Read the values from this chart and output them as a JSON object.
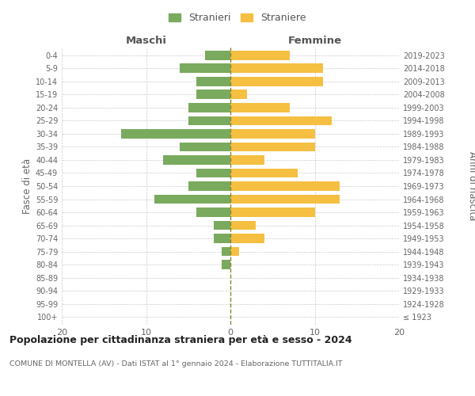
{
  "age_groups": [
    "100+",
    "95-99",
    "90-94",
    "85-89",
    "80-84",
    "75-79",
    "70-74",
    "65-69",
    "60-64",
    "55-59",
    "50-54",
    "45-49",
    "40-44",
    "35-39",
    "30-34",
    "25-29",
    "20-24",
    "15-19",
    "10-14",
    "5-9",
    "0-4"
  ],
  "birth_years": [
    "≤ 1923",
    "1924-1928",
    "1929-1933",
    "1934-1938",
    "1939-1943",
    "1944-1948",
    "1949-1953",
    "1954-1958",
    "1959-1963",
    "1964-1968",
    "1969-1973",
    "1974-1978",
    "1979-1983",
    "1984-1988",
    "1989-1993",
    "1994-1998",
    "1999-2003",
    "2004-2008",
    "2009-2013",
    "2014-2018",
    "2019-2023"
  ],
  "males": [
    0,
    0,
    0,
    0,
    1,
    1,
    2,
    2,
    4,
    9,
    5,
    4,
    8,
    6,
    13,
    5,
    5,
    4,
    4,
    6,
    3
  ],
  "females": [
    0,
    0,
    0,
    0,
    0,
    1,
    4,
    3,
    10,
    13,
    13,
    8,
    4,
    10,
    10,
    12,
    7,
    2,
    11,
    11,
    7
  ],
  "male_color": "#7aaa5e",
  "female_color": "#f5bf42",
  "grid_color": "#cccccc",
  "center_line_color": "#888833",
  "title": "Popolazione per cittadinanza straniera per età e sesso - 2024",
  "subtitle": "COMUNE DI MONTELLA (AV) - Dati ISTAT al 1° gennaio 2024 - Elaborazione TUTTITALIA.IT",
  "xlabel_left": "Maschi",
  "xlabel_right": "Femmine",
  "ylabel_left": "Fasce di età",
  "ylabel_right": "Anni di nascita",
  "legend_stranieri": "Stranieri",
  "legend_straniere": "Straniere",
  "xlim": 20,
  "background_color": "#ffffff"
}
